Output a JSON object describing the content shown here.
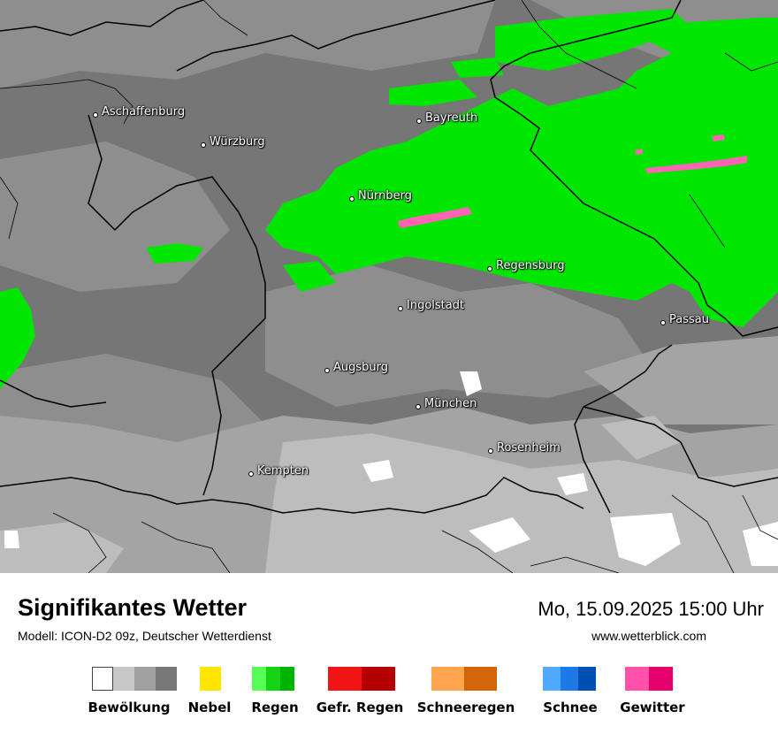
{
  "map": {
    "cities": [
      {
        "name": "Aschaffenburg"
      },
      {
        "name": "Würzburg"
      },
      {
        "name": "Bayreuth"
      },
      {
        "name": "Nürnberg"
      },
      {
        "name": "Regensburg"
      },
      {
        "name": "Ingolstadt"
      },
      {
        "name": "Passau"
      },
      {
        "name": "Augsburg"
      },
      {
        "name": "München"
      },
      {
        "name": "Rosenheim"
      },
      {
        "name": "Kempten"
      }
    ]
  },
  "footer": {
    "title": "Signifikantes Wetter",
    "model": "Modell: ICON-D2 09z, Deutscher Wetterdienst",
    "datetime": "Mo, 15.09.2025 15:00 Uhr",
    "website": "www.wetterblick.com"
  },
  "legend": [
    {
      "label": "Bewölkung",
      "colors": [
        "#ffffff",
        "#c8c8c8",
        "#a0a0a0",
        "#787878"
      ]
    },
    {
      "label": "Nebel",
      "colors": [
        "#ffe600"
      ]
    },
    {
      "label": "Regen",
      "colors": [
        "#55ff55",
        "#14d214",
        "#00b400"
      ]
    },
    {
      "label": "Gefr. Regen",
      "colors": [
        "#f01414",
        "#b40000"
      ]
    },
    {
      "label": "Schneeregen",
      "colors": [
        "#ffa550",
        "#d2640a"
      ]
    },
    {
      "label": "Schnee",
      "colors": [
        "#50aaff",
        "#1e78e6",
        "#0050b4"
      ]
    },
    {
      "label": "Gewitter",
      "colors": [
        "#ff50aa",
        "#e6006e"
      ]
    }
  ],
  "colors": {
    "rain": "#00e600",
    "thunderstorm": "#ff64b4",
    "cloud_dark": "#6e6e6e",
    "cloud_mid": "#8c8c8c",
    "cloud_light": "#b4b4b4",
    "clear": "#ffffff",
    "border": "#000000"
  }
}
